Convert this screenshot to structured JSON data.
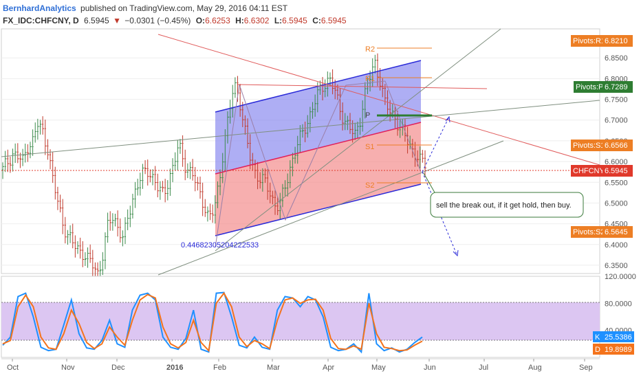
{
  "header": {
    "author": "BernhardAnalytics",
    "published": "published on TradingView.com, May 29, 2016 04:11 EST",
    "symbol": "FX_IDC:CHFCNY, D",
    "last": "6.5945",
    "change": "−0.0301 (−0.45%)",
    "o_label": "O:",
    "o": "6.6253",
    "h_label": "H:",
    "h": "6.6302",
    "l_label": "L:",
    "l": "6.5945",
    "c_label": "C:",
    "c": "6.5945"
  },
  "colors": {
    "up": "#3a8a4a",
    "down": "#c0392b",
    "blue_channel": "#2a2ad8",
    "pivot": "#ed7e24",
    "p_pivot": "#2e7d32",
    "price": "#e0392b",
    "k": "#1e90ff",
    "d": "#f4731b",
    "stoch_band": "#dcc6f2"
  },
  "annotations": {
    "r2": "R2",
    "r1": "R1",
    "p": "P",
    "s1": "S1",
    "s2": "S2",
    "low_value": "0.4468230520422253​3",
    "note": "sell the break out, if it get hold, then buy."
  },
  "price_tags": {
    "r1_label": "Pivots:R1",
    "r1_value": "6.8210",
    "p_label": "Pivots:P",
    "p_value": "6.7289",
    "s1_label": "Pivots:S1",
    "s1_value": "6.6566",
    "last_label": "CHFCNY",
    "last_value": "6.5945",
    "s2_label": "Pivots:S2",
    "s2_value": "6.5645"
  },
  "stoch_tags": {
    "k_label": "K",
    "k_value": "25.5386",
    "d_label": "D",
    "d_value": "19.8989"
  },
  "chart_data": [
    {
      "type": "candlestick",
      "symbol": "FX_IDC:CHFCNY",
      "interval": "D",
      "ylim": [
        6.33,
        6.92
      ],
      "y_ticks": [
        6.35,
        6.4,
        6.45,
        6.5,
        6.55,
        6.6,
        6.65,
        6.7,
        6.75,
        6.8,
        6.85
      ],
      "y_tick_labels": [
        "6.3500",
        "6.4000",
        "6.4500",
        "6.5000",
        "6.5500",
        "6.6000",
        "6.6500",
        "6.7000",
        "6.7500",
        "6.8000",
        "6.8500"
      ],
      "x_labels": [
        "Oct",
        "Nov",
        "Dec",
        "2016",
        "Feb",
        "Mar",
        "Apr",
        "May",
        "Jun",
        "Jul",
        "Aug",
        "Sep"
      ],
      "close_path": [
        6.58,
        6.6,
        6.62,
        6.61,
        6.6,
        6.64,
        6.65,
        6.69,
        6.67,
        6.63,
        6.55,
        6.5,
        6.45,
        6.42,
        6.4,
        6.39,
        6.38,
        6.36,
        6.35,
        6.33,
        6.38,
        6.45,
        6.47,
        6.44,
        6.41,
        6.47,
        6.52,
        6.55,
        6.57,
        6.58,
        6.56,
        6.53,
        6.52,
        6.56,
        6.59,
        6.64,
        6.6,
        6.58,
        6.56,
        6.53,
        6.5,
        6.46,
        6.48,
        6.55,
        6.64,
        6.71,
        6.79,
        6.76,
        6.68,
        6.62,
        6.58,
        6.56,
        6.55,
        6.53,
        6.5,
        6.49,
        6.53,
        6.58,
        6.62,
        6.65,
        6.68,
        6.71,
        6.74,
        6.77,
        6.79,
        6.8,
        6.77,
        6.73,
        6.7,
        6.68,
        6.66,
        6.7,
        6.76,
        6.8,
        6.84,
        6.8,
        6.74,
        6.72,
        6.71,
        6.68,
        6.66,
        6.64,
        6.62,
        6.6,
        6.5945
      ],
      "pivots": {
        "R2": 6.905,
        "R1": 6.821,
        "P": 6.7289,
        "S1": 6.6566,
        "S2": 6.5645
      },
      "last_price": 6.5945
    },
    {
      "type": "line",
      "title": "Stochastic",
      "ylim": [
        0,
        120
      ],
      "y_ticks": [
        40,
        80,
        120
      ],
      "y_tick_labels": [
        "40.0000",
        "80.0000",
        "120.0000"
      ],
      "bands": [
        20,
        80
      ],
      "series": [
        {
          "name": "K",
          "values": [
            18,
            30,
            90,
            95,
            60,
            15,
            10,
            12,
            48,
            85,
            35,
            14,
            12,
            25,
            55,
            20,
            15,
            70,
            92,
            95,
            85,
            30,
            15,
            12,
            28,
            70,
            12,
            8,
            95,
            96,
            60,
            18,
            14,
            30,
            15,
            12,
            70,
            90,
            88,
            75,
            90,
            85,
            60,
            15,
            10,
            12,
            20,
            8,
            95,
            20,
            10,
            14,
            8,
            12,
            22,
            30
          ]
        },
        {
          "name": "D",
          "values": [
            20,
            25,
            75,
            92,
            75,
            30,
            14,
            12,
            35,
            70,
            50,
            22,
            13,
            20,
            45,
            30,
            18,
            55,
            85,
            93,
            88,
            45,
            20,
            14,
            22,
            55,
            22,
            10,
            80,
            95,
            75,
            30,
            16,
            25,
            20,
            13,
            55,
            85,
            88,
            80,
            85,
            86,
            70,
            28,
            13,
            12,
            17,
            12,
            80,
            35,
            15,
            13,
            10,
            11,
            18,
            24
          ]
        }
      ],
      "k_last": 25.5386,
      "d_last": 19.8989
    }
  ]
}
